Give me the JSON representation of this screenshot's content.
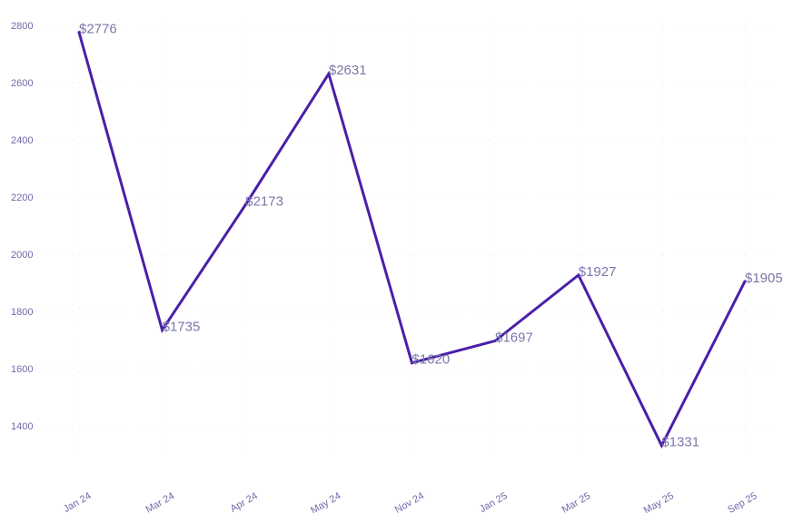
{
  "chart_data": {
    "type": "line",
    "categories": [
      "Jan 24",
      "Mar 24",
      "Apr 24",
      "May 24",
      "Nov 24",
      "Jan 25",
      "Mar 25",
      "May 25",
      "Sep 25"
    ],
    "series": [
      {
        "values": [
          2776,
          1735,
          2173,
          2631,
          1620,
          1697,
          1927,
          1331,
          1905
        ],
        "data_labels": [
          "$2776",
          "$1735",
          "$2173",
          "$2631",
          "$1620",
          "$1697",
          "$1927",
          "$1331",
          "$1905"
        ]
      }
    ],
    "yticks": [
      "1400",
      "1600",
      "1800",
      "2000",
      "2200",
      "2400",
      "2600",
      "2800"
    ],
    "ylim": [
      1200,
      2800
    ],
    "grid": true,
    "colors": {
      "line": "#4a1fa8",
      "tick_text": "#6e6aa8",
      "label_text": "#7b78ad"
    }
  }
}
